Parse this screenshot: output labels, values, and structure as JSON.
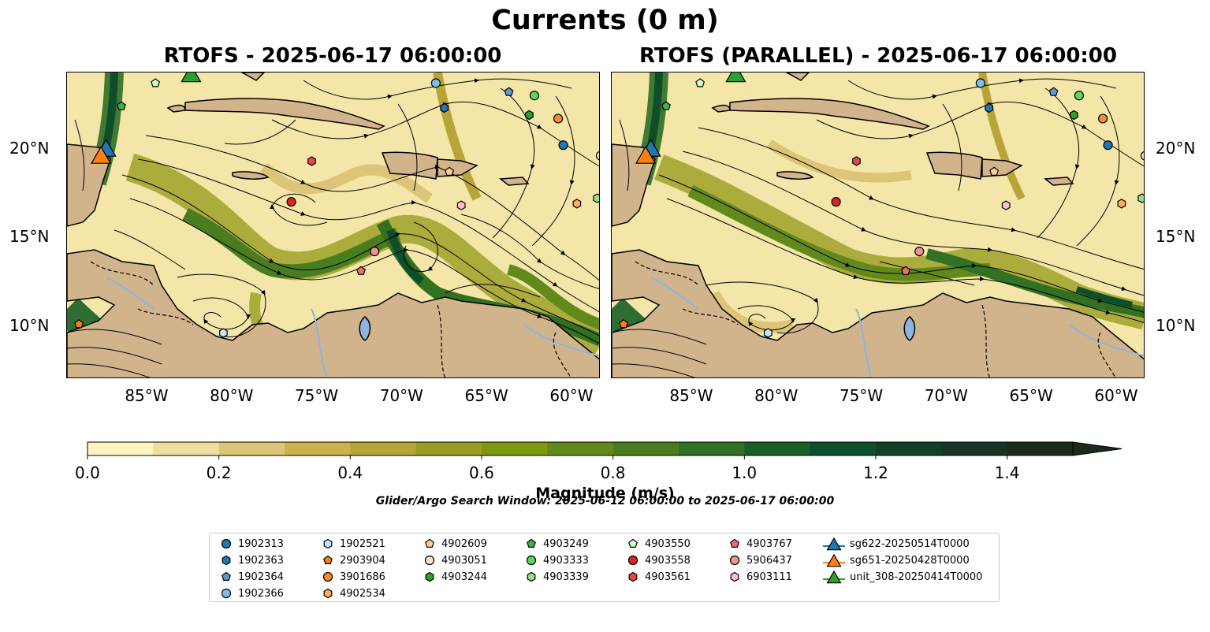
{
  "title": "Currents (0 m)",
  "panels": [
    {
      "title": "RTOFS - 2025-06-17 06:00:00"
    },
    {
      "title": "RTOFS (PARALLEL) - 2025-06-17 06:00:00"
    }
  ],
  "axes": {
    "lon_ticks": [
      "85°W",
      "80°W",
      "75°W",
      "70°W",
      "65°W",
      "60°W"
    ],
    "lat_ticks": [
      "20°N",
      "15°N",
      "10°N"
    ],
    "lon_range": [
      -89.7,
      -58.3
    ],
    "lat_range": [
      7.0,
      24.3
    ]
  },
  "colorbar": {
    "label": "Magnitude (m/s)",
    "ticks": [
      "0.0",
      "0.2",
      "0.4",
      "0.6",
      "0.8",
      "1.0",
      "1.2",
      "1.4"
    ],
    "range": [
      0,
      1.5
    ],
    "colors": [
      "#fdf5c0",
      "#eedfa0",
      "#dcc478",
      "#cbb24c",
      "#b7a637",
      "#9a9d22",
      "#7f9812",
      "#62891b",
      "#4a7d20",
      "#327022",
      "#196026",
      "#0d4f2b",
      "#104028",
      "#183225",
      "#1b2a1e"
    ]
  },
  "search_window": "Glider/Argo Search Window: 2025-06-12 06:00:00 to 2025-06-17 06:00:00",
  "colors": {
    "land": "#d2b48c",
    "lake": "#8fb4e0",
    "river": "#8fb4e0"
  },
  "legend": [
    {
      "label": "1902313",
      "marker": "circle",
      "color": "#1f77b4"
    },
    {
      "label": "1902363",
      "marker": "hexagon",
      "color": "#1f77b4"
    },
    {
      "label": "1902364",
      "marker": "pentagon",
      "color": "#5b9bd5"
    },
    {
      "label": "1902366",
      "marker": "circle",
      "color": "#7ebde8"
    },
    {
      "label": "1902521",
      "marker": "hexagon",
      "color": "#c6e4f8"
    },
    {
      "label": "2903904",
      "marker": "pentagon",
      "color": "#ff7f0e"
    },
    {
      "label": "3901686",
      "marker": "circle",
      "color": "#f28e2b"
    },
    {
      "label": "4902534",
      "marker": "hexagon",
      "color": "#ffad5a"
    },
    {
      "label": "4902609",
      "marker": "pentagon",
      "color": "#ffcc99"
    },
    {
      "label": "4903051",
      "marker": "circle",
      "color": "#ffe0c2"
    },
    {
      "label": "4903244",
      "marker": "hexagon",
      "color": "#2ca02c"
    },
    {
      "label": "4903249",
      "marker": "pentagon",
      "color": "#3cb44b"
    },
    {
      "label": "4903333",
      "marker": "circle",
      "color": "#5dd65d"
    },
    {
      "label": "4903339",
      "marker": "hexagon",
      "color": "#98df8a"
    },
    {
      "label": "4903550",
      "marker": "pentagon",
      "color": "#cfffc0"
    },
    {
      "label": "4903558",
      "marker": "circle",
      "color": "#d62728"
    },
    {
      "label": "4903561",
      "marker": "hexagon",
      "color": "#e8474a"
    },
    {
      "label": "4903767",
      "marker": "pentagon",
      "color": "#ef6f6f"
    },
    {
      "label": "5906437",
      "marker": "circle",
      "color": "#f39190"
    },
    {
      "label": "6903111",
      "marker": "hexagon",
      "color": "#ffbfc2"
    },
    {
      "label": "sg622-20250514T0000",
      "marker": "triangle",
      "color": "#1f77b4"
    },
    {
      "label": "sg651-20250428T0000",
      "marker": "triangle",
      "color": "#ff7f0e"
    },
    {
      "label": "unit_308-20250414T0000",
      "marker": "triangle",
      "color": "#2ca02c"
    }
  ],
  "markers": {
    "left": [
      {
        "label": "1902313",
        "lon": -60.5,
        "lat": 20.2
      },
      {
        "label": "1902363",
        "lon": -67.5,
        "lat": 22.3
      },
      {
        "label": "1902364",
        "lon": -63.7,
        "lat": 23.2
      },
      {
        "label": "1902366",
        "lon": -68.0,
        "lat": 23.7
      },
      {
        "label": "1902521",
        "lon": -80.5,
        "lat": 9.6
      },
      {
        "label": "2903904",
        "lon": -89.0,
        "lat": 10.1
      },
      {
        "label": "3901686",
        "lon": -60.8,
        "lat": 21.7
      },
      {
        "label": "4902609",
        "lon": -67.2,
        "lat": 18.7
      },
      {
        "label": "4903051",
        "lon": -58.3,
        "lat": 19.6
      },
      {
        "label": "4903244",
        "lon": -62.5,
        "lat": 21.9
      },
      {
        "label": "4903249",
        "lon": -86.5,
        "lat": 22.4
      },
      {
        "label": "4903333",
        "lon": -62.2,
        "lat": 23.0
      },
      {
        "label": "4903339",
        "lon": -58.5,
        "lat": 17.2
      },
      {
        "label": "4903550",
        "lon": -84.5,
        "lat": 23.7
      },
      {
        "label": "4903558",
        "lon": -76.5,
        "lat": 17.0
      },
      {
        "label": "4903561",
        "lon": -75.3,
        "lat": 19.3
      },
      {
        "label": "4903767",
        "lon": -72.4,
        "lat": 13.1
      },
      {
        "label": "5906437",
        "lon": -71.6,
        "lat": 14.2
      },
      {
        "label": "6903111",
        "lon": -66.5,
        "lat": 16.8
      },
      {
        "label": "4902534",
        "lon": -59.7,
        "lat": 16.9
      },
      {
        "label": "sg622-20250514T0000",
        "lon": -87.4,
        "lat": 20.0
      },
      {
        "label": "sg651-20250428T0000",
        "lon": -87.7,
        "lat": 19.6
      },
      {
        "label": "unit_308-20250414T0000",
        "lon": -82.4,
        "lat": 24.2
      }
    ],
    "right": [
      {
        "label": "1902313",
        "lon": -60.5,
        "lat": 20.2
      },
      {
        "label": "1902363",
        "lon": -67.5,
        "lat": 22.3
      },
      {
        "label": "1902364",
        "lon": -63.7,
        "lat": 23.2
      },
      {
        "label": "1902366",
        "lon": -68.0,
        "lat": 23.7
      },
      {
        "label": "1902521",
        "lon": -80.5,
        "lat": 9.6
      },
      {
        "label": "2903904",
        "lon": -89.0,
        "lat": 10.1
      },
      {
        "label": "3901686",
        "lon": -60.8,
        "lat": 21.7
      },
      {
        "label": "4902609",
        "lon": -67.2,
        "lat": 18.7
      },
      {
        "label": "4903051",
        "lon": -58.3,
        "lat": 19.6
      },
      {
        "label": "4903244",
        "lon": -62.5,
        "lat": 21.9
      },
      {
        "label": "4903249",
        "lon": -86.5,
        "lat": 22.4
      },
      {
        "label": "4903333",
        "lon": -62.2,
        "lat": 23.0
      },
      {
        "label": "4903339",
        "lon": -58.5,
        "lat": 17.2
      },
      {
        "label": "4903550",
        "lon": -84.5,
        "lat": 23.7
      },
      {
        "label": "4903558",
        "lon": -76.5,
        "lat": 17.0
      },
      {
        "label": "4903561",
        "lon": -75.3,
        "lat": 19.3
      },
      {
        "label": "4903767",
        "lon": -72.4,
        "lat": 13.1
      },
      {
        "label": "5906437",
        "lon": -71.6,
        "lat": 14.2
      },
      {
        "label": "6903111",
        "lon": -66.5,
        "lat": 16.8
      },
      {
        "label": "4902534",
        "lon": -59.7,
        "lat": 16.9
      },
      {
        "label": "sg622-20250514T0000",
        "lon": -87.4,
        "lat": 20.0
      },
      {
        "label": "sg651-20250428T0000",
        "lon": -87.7,
        "lat": 19.6
      },
      {
        "label": "unit_308-20250414T0000",
        "lon": -82.4,
        "lat": 24.2
      }
    ]
  }
}
